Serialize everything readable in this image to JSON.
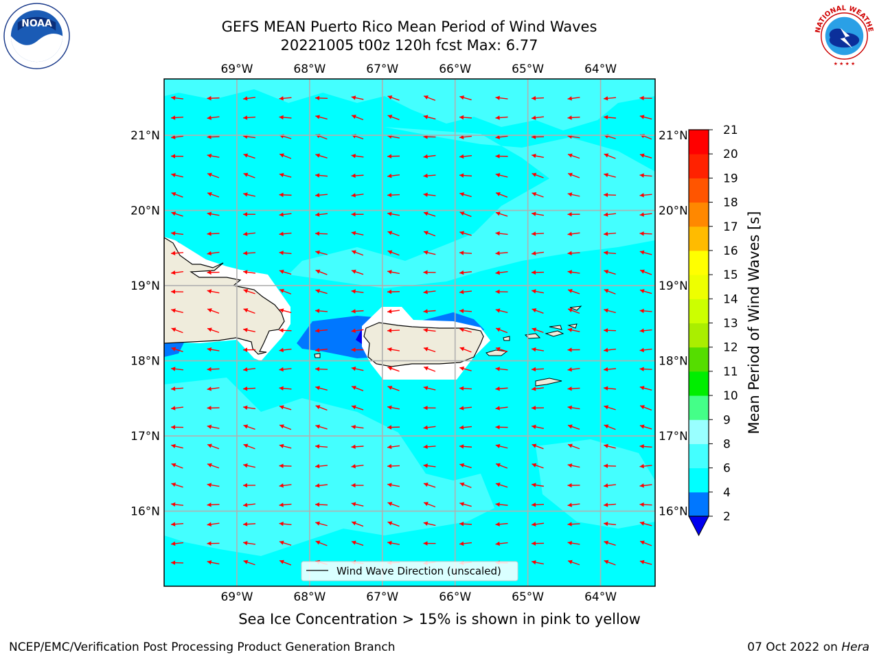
{
  "title": {
    "line1": "GEFS MEAN Puerto Rico Mean Period of Wind Waves",
    "line2": "20221005 t00z 120h fcst   Max: 6.77"
  },
  "map": {
    "lon_ticks": [
      "69°W",
      "68°W",
      "67°W",
      "66°W",
      "65°W",
      "64°W"
    ],
    "lat_ticks": [
      "21°N",
      "20°N",
      "19°N",
      "18°N",
      "17°N",
      "16°N"
    ],
    "lon_values": [
      -69,
      -68,
      -67,
      -66,
      -65,
      -64
    ],
    "lat_values": [
      21,
      20,
      19,
      18,
      17,
      16
    ],
    "extent": {
      "lon_min": -70,
      "lon_max": -63.25,
      "lat_min": 15,
      "lat_max": 21.75
    },
    "legend_label": "Wind Wave Direction (unscaled)",
    "colors": {
      "ocean_base": "#00ffff",
      "ocean_light": "#44ffff",
      "land": "#efecdc",
      "arrows": "#ff0000"
    }
  },
  "colorbar": {
    "label": "Mean Period of Wind Waves [s]",
    "ticks": [
      "2",
      "4",
      "6",
      "8",
      "9",
      "10",
      "11",
      "12",
      "13",
      "14",
      "15",
      "16",
      "17",
      "18",
      "19",
      "20",
      "21"
    ],
    "colors": [
      "#0000ee",
      "#0077ff",
      "#00ffff",
      "#44ffff",
      "#99ffff",
      "#44ff88",
      "#00ee00",
      "#55dd00",
      "#aaee00",
      "#ccff00",
      "#eeff00",
      "#ffff00",
      "#ffbb00",
      "#ff8800",
      "#ff5500",
      "#ff2200",
      "#ff0000"
    ]
  },
  "caption": "Sea Ice Concentration > 15% is shown in pink to yellow",
  "footer": {
    "left": "NCEP/EMC/Verification Post Processing Product Generation Branch",
    "right_date": "07 Oct 2022 on ",
    "right_host": "Hera"
  },
  "logos": {
    "noaa_text": "NOAA",
    "nws_text": "NATIONAL WEATHER SERVICE"
  }
}
